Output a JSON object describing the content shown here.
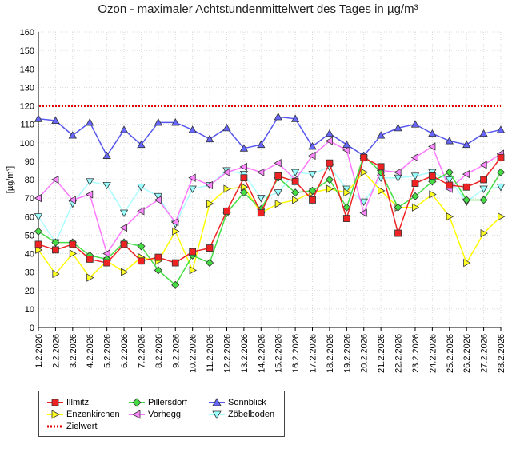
{
  "chart_data": {
    "type": "line",
    "title": "Ozon -  maximaler Achtstundenmittelwert des Tages in µg/m³",
    "ylabel": "[µg/m³]",
    "xlabel": "",
    "ylim": [
      0,
      160
    ],
    "yticks": [
      0,
      10,
      20,
      30,
      40,
      50,
      60,
      70,
      80,
      90,
      100,
      110,
      120,
      130,
      140,
      150,
      160
    ],
    "grid": true,
    "legend_position": "bottom-left",
    "categories": [
      "1.2.2026",
      "2.2.2026",
      "3.2.2026",
      "4.2.2026",
      "5.2.2026",
      "6.2.2026",
      "7.2.2026",
      "8.2.2026",
      "9.2.2026",
      "10.2.2026",
      "11.2.2026",
      "12.2.2026",
      "13.2.2026",
      "14.2.2026",
      "15.2.2026",
      "16.2.2026",
      "17.2.2026",
      "18.2.2026",
      "19.2.2026",
      "20.2.2026",
      "21.2.2026",
      "22.2.2026",
      "23.2.2026",
      "24.2.2026",
      "25.2.2026",
      "26.2.2026",
      "27.2.2026",
      "28.2.2026"
    ],
    "series": [
      {
        "name": "Illmitz",
        "color": "#ee2222",
        "fill": "#ee2222",
        "marker": "square",
        "values": [
          45,
          42,
          45,
          37,
          35,
          45,
          36,
          38,
          35,
          41,
          43,
          63,
          81,
          62,
          82,
          79,
          69,
          89,
          59,
          92,
          87,
          51,
          78,
          82,
          77,
          76,
          80,
          92
        ]
      },
      {
        "name": "Enzenkirchen",
        "color": "#ffff00",
        "fill": "#ffff22",
        "marker": "triangle-right",
        "values": [
          42,
          29,
          40,
          27,
          36,
          30,
          38,
          36,
          52,
          31,
          67,
          75,
          76,
          62,
          67,
          69,
          73,
          75,
          73,
          84,
          74,
          65,
          65,
          72,
          60,
          35,
          51,
          60
        ]
      },
      {
        "name": "Pillersdorf",
        "color": "#44dd44",
        "fill": "#44dd44",
        "marker": "diamond",
        "values": [
          52,
          46,
          46,
          39,
          37,
          46,
          44,
          31,
          23,
          39,
          35,
          62,
          73,
          64,
          81,
          73,
          74,
          80,
          65,
          93,
          84,
          65,
          71,
          79,
          84,
          69,
          69,
          84
        ]
      },
      {
        "name": "Vorhegg",
        "color": "#ff77ff",
        "fill": "#ff88ff",
        "marker": "triangle-left",
        "values": [
          70,
          80,
          69,
          72,
          40,
          54,
          63,
          69,
          57,
          81,
          77,
          84,
          87,
          84,
          89,
          80,
          93,
          101,
          96,
          62,
          85,
          84,
          92,
          98,
          75,
          83,
          88,
          94
        ]
      },
      {
        "name": "Sonnblick",
        "color": "#5555ee",
        "fill": "#6666ff",
        "marker": "triangle-up",
        "values": [
          113,
          112,
          104,
          111,
          93,
          107,
          99,
          111,
          111,
          107,
          102,
          108,
          97,
          99,
          114,
          113,
          98,
          105,
          99,
          93,
          104,
          108,
          110,
          105,
          101,
          99,
          105,
          107
        ]
      },
      {
        "name": "Zöbelboden",
        "color": "#aaffff",
        "fill": "#99ffff",
        "marker": "triangle-down",
        "values": [
          60,
          46,
          67,
          79,
          77,
          62,
          76,
          71,
          56,
          75,
          77,
          85,
          83,
          70,
          73,
          84,
          83,
          87,
          75,
          68,
          81,
          81,
          82,
          84,
          80,
          68,
          75,
          76
        ]
      }
    ],
    "reference_lines": [
      {
        "name": "Zielwert",
        "value": 120,
        "color": "#dd0000",
        "style": "dotted"
      }
    ]
  }
}
